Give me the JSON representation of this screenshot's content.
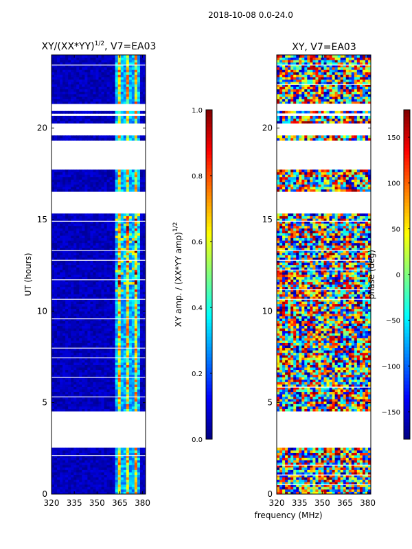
{
  "suptitle": "2018-10-08 0.0-24.0",
  "chart_data": [
    {
      "type": "heatmap",
      "title_main": "XY/(XX*YY)",
      "title_exp": "1/2",
      "title_suffix": ", V7=EA03",
      "xlabel": "",
      "ylabel": "UT (hours)",
      "xlim": [
        320,
        382
      ],
      "ylim": [
        0,
        24
      ],
      "xticks": [
        "320",
        "335",
        "350",
        "365",
        "380"
      ],
      "xtick_values": [
        320,
        335,
        350,
        365,
        380
      ],
      "yticks": [
        "0",
        "5",
        "10",
        "15",
        "20"
      ],
      "ytick_values": [
        0,
        5,
        10,
        15,
        20
      ],
      "colorbar": {
        "label_main": "XY amp. / (XX*YY amp)",
        "label_exp": "1/2",
        "min": 0.0,
        "max": 1.0,
        "ticks": [
          "0.0",
          "0.2",
          "0.4",
          "0.6",
          "0.8",
          "1.0"
        ],
        "tick_values": [
          0.0,
          0.2,
          0.4,
          0.6,
          0.8,
          1.0
        ],
        "colormap": "jet"
      },
      "data_gaps_hours": [
        [
          2.6,
          4.5
        ],
        [
          15.4,
          16.6
        ],
        [
          17.8,
          19.4
        ],
        [
          19.6,
          20.3
        ],
        [
          20.7,
          20.8
        ],
        [
          21.0,
          21.3
        ]
      ],
      "bright_band_MHz": [
        362,
        378
      ],
      "background_value": 0.02
    },
    {
      "type": "heatmap",
      "title": "XY, V7=EA03",
      "xlabel": "frequency (MHz)",
      "ylabel": "",
      "xlim": [
        320,
        382
      ],
      "ylim": [
        0,
        24
      ],
      "xticks": [
        "320",
        "335",
        "350",
        "365",
        "380"
      ],
      "xtick_values": [
        320,
        335,
        350,
        365,
        380
      ],
      "yticks": [
        "0",
        "5",
        "10",
        "15",
        "20"
      ],
      "ytick_values": [
        0,
        5,
        10,
        15,
        20
      ],
      "colorbar": {
        "label": "phase (deg)",
        "min": -180,
        "max": 180,
        "ticks": [
          "−150",
          "−100",
          "−50",
          "0",
          "50",
          "100",
          "150"
        ],
        "tick_values": [
          -150,
          -100,
          -50,
          0,
          50,
          100,
          150
        ],
        "colormap": "jet"
      },
      "data_gaps_hours": [
        [
          2.6,
          4.5
        ],
        [
          15.4,
          16.6
        ],
        [
          17.8,
          19.4
        ],
        [
          19.6,
          20.3
        ],
        [
          20.7,
          20.8
        ],
        [
          21.0,
          21.3
        ]
      ]
    }
  ]
}
